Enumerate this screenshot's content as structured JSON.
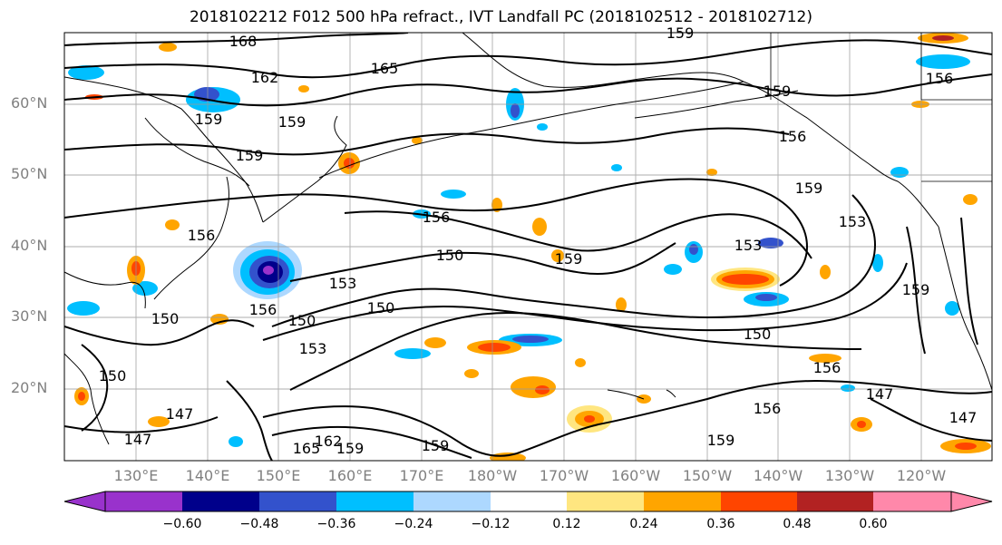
{
  "title": "2018102212 F012 500 hPa refract., IVT Landfall PC (2018102512 - 2018102712)",
  "lat_labels": [
    "60°N",
    "50°N",
    "40°N",
    "30°N",
    "20°N"
  ],
  "lon_labels": [
    "130°E",
    "140°E",
    "150°E",
    "160°E",
    "170°E",
    "180°W",
    "170°W",
    "160°W",
    "150°W",
    "140°W",
    "130°W",
    "120°W"
  ],
  "colorbar": {
    "colors": [
      "#9932cc",
      "#00008b",
      "#3352cc",
      "#00bfff",
      "#add8ff",
      "#ffffff",
      "#ffe680",
      "#ffa500",
      "#ff4500",
      "#b22222",
      "#ff88aa"
    ],
    "tick_labels": [
      "−0.60",
      "−0.48",
      "−0.36",
      "−0.24",
      "−0.12",
      "0.12",
      "0.24",
      "0.36",
      "0.48",
      "0.60"
    ]
  },
  "contour_labels": [
    "168",
    "162",
    "165",
    "159",
    "159",
    "159",
    "156",
    "159",
    "156",
    "150",
    "153",
    "150",
    "150",
    "153",
    "156",
    "150",
    "159",
    "156",
    "150",
    "156",
    "159",
    "153",
    "150",
    "147",
    "147",
    "153",
    "147",
    "159",
    "156",
    "159",
    "147",
    "156",
    "159",
    "165",
    "162",
    "159",
    "159"
  ]
}
